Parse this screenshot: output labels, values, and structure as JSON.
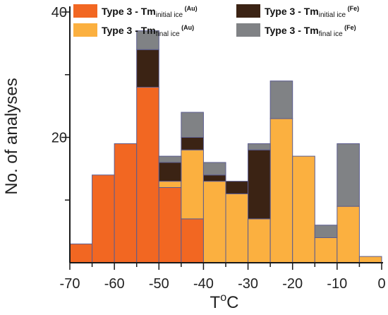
{
  "chart_data": {
    "type": "bar",
    "stacked": true,
    "xlabel": {
      "main": "T",
      "sup": "o",
      "tail": "C"
    },
    "ylabel": "No. of analyses",
    "xlim": [
      -70,
      0
    ],
    "ylim": [
      0,
      40
    ],
    "x_ticks": [
      -70,
      -60,
      -50,
      -40,
      -30,
      -20,
      -10,
      0
    ],
    "x_tick_labels": [
      "-70",
      "-60",
      "-50",
      "-40",
      "-30",
      "-20",
      "-10",
      "0"
    ],
    "y_ticks": [
      20,
      40
    ],
    "y_tick_labels": [
      "20",
      "40"
    ],
    "grid": false,
    "legend_position": "top",
    "colors": {
      "initial_au": "#f26722",
      "final_au": "#fbb040",
      "initial_fe": "#3b2314",
      "final_fe": "#808285",
      "bar_edge": "#5b5c8f"
    },
    "series": [
      {
        "key": "initial_au",
        "name": {
          "main": "Type 3 - Tm",
          "sub": "initial ice",
          "sup": " (Au)"
        },
        "bins": [
          {
            "x0": -70,
            "x1": -65,
            "value": 3
          },
          {
            "x0": -65,
            "x1": -60,
            "value": 14
          },
          {
            "x0": -60,
            "x1": -55,
            "value": 19
          },
          {
            "x0": -55,
            "x1": -50,
            "value": 28
          },
          {
            "x0": -50,
            "x1": -45,
            "value": 12
          },
          {
            "x0": -45,
            "x1": -40,
            "value": 7
          }
        ]
      },
      {
        "key": "final_au",
        "name": {
          "main": "Type 3 - Tm",
          "sub": "final ice",
          "sup": " (Au)"
        },
        "bins": [
          {
            "x0": -50,
            "x1": -45,
            "value": 1
          },
          {
            "x0": -45,
            "x1": -40,
            "value": 11
          },
          {
            "x0": -40,
            "x1": -35,
            "value": 13
          },
          {
            "x0": -35,
            "x1": -30,
            "value": 11
          },
          {
            "x0": -30,
            "x1": -25,
            "value": 7
          },
          {
            "x0": -25,
            "x1": -20,
            "value": 23
          },
          {
            "x0": -20,
            "x1": -15,
            "value": 17
          },
          {
            "x0": -15,
            "x1": -10,
            "value": 4
          },
          {
            "x0": -10,
            "x1": -5,
            "value": 9
          },
          {
            "x0": -5,
            "x1": 0,
            "value": 1
          }
        ]
      },
      {
        "key": "initial_fe",
        "name": {
          "main": "Type 3 - Tm",
          "sub": "initial ice",
          "sup": " (Fe)"
        },
        "bins": [
          {
            "x0": -55,
            "x1": -50,
            "value": 6
          },
          {
            "x0": -50,
            "x1": -45,
            "value": 3
          },
          {
            "x0": -45,
            "x1": -40,
            "value": 2
          },
          {
            "x0": -40,
            "x1": -35,
            "value": 1
          },
          {
            "x0": -35,
            "x1": -30,
            "value": 2
          },
          {
            "x0": -30,
            "x1": -25,
            "value": 11
          }
        ]
      },
      {
        "key": "final_fe",
        "name": {
          "main": "Type 3 - Tm",
          "sub": "final ice",
          "sup": " (Fe)"
        },
        "bins": [
          {
            "x0": -55,
            "x1": -50,
            "value": 3
          },
          {
            "x0": -50,
            "x1": -45,
            "value": 1
          },
          {
            "x0": -45,
            "x1": -40,
            "value": 4
          },
          {
            "x0": -40,
            "x1": -35,
            "value": 2
          },
          {
            "x0": -30,
            "x1": -25,
            "value": 1
          },
          {
            "x0": -25,
            "x1": -20,
            "value": 6
          },
          {
            "x0": -15,
            "x1": -10,
            "value": 2
          },
          {
            "x0": -10,
            "x1": -5,
            "value": 10
          }
        ]
      }
    ],
    "stack_order": [
      "initial_au",
      "final_au",
      "initial_fe",
      "final_fe"
    ]
  }
}
